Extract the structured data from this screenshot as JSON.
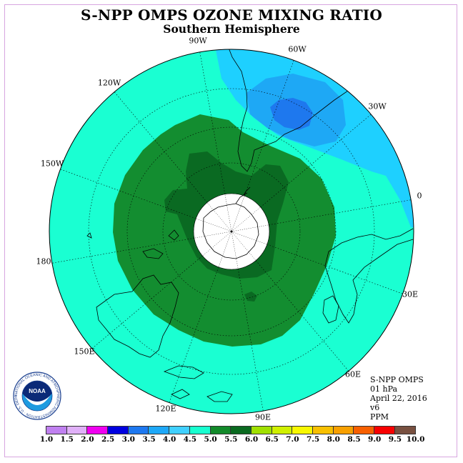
{
  "title": "S-NPP OMPS OZONE MIXING RATIO",
  "subtitle": "Southern Hemisphere",
  "longitude_labels": [
    "90W",
    "60W",
    "30W",
    "0",
    "30E",
    "60E",
    "90E",
    "120E",
    "150E",
    "180",
    "150W",
    "120W"
  ],
  "info": {
    "instrument": "S-NPP OMPS",
    "pressure_level": "01 hPa",
    "date": "April 22, 2016",
    "version": "v6",
    "units": "PPM"
  },
  "logo": {
    "text": "NOAA",
    "ring_text": "NATIONAL OCEANIC AND ATMOSPHERIC ADMINISTRATION · U.S. DEPARTMENT OF COMMERCE"
  },
  "colorbar": {
    "ticks": [
      "1.0",
      "1.5",
      "2.0",
      "2.5",
      "3.0",
      "3.5",
      "4.0",
      "4.5",
      "5.0",
      "5.5",
      "6.0",
      "6.5",
      "7.0",
      "7.5",
      "8.0",
      "8.5",
      "9.0",
      "9.5",
      "10.0"
    ],
    "colors": [
      "#c080f0",
      "#e0b0f8",
      "#f000f0",
      "#0000e0",
      "#1e78f0",
      "#1ea8f8",
      "#40d0ff",
      "#18ffd0",
      "#128a2a",
      "#0a6a20",
      "#a0e000",
      "#d0f000",
      "#f8f800",
      "#f8c000",
      "#f8a000",
      "#f86000",
      "#f80000",
      "#785040"
    ]
  },
  "map_colors": {
    "level_4_0": "#1ed0ff",
    "level_4_5": "#1affd2",
    "level_5_5": "#138d30",
    "level_6_0": "#0a6a22",
    "level_3_5": "#1ea8f5",
    "level_3_0": "#1e78ee",
    "no_data": "#ffffff"
  }
}
